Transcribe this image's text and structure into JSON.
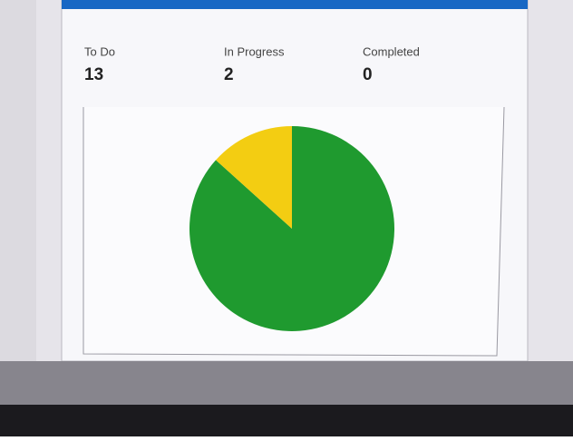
{
  "chart_data": {
    "type": "pie",
    "categories": [
      "To Do",
      "In Progress",
      "Completed"
    ],
    "values": [
      13,
      2,
      0
    ],
    "colors": [
      "#1f9a2f",
      "#f3cd12",
      null
    ]
  }
}
